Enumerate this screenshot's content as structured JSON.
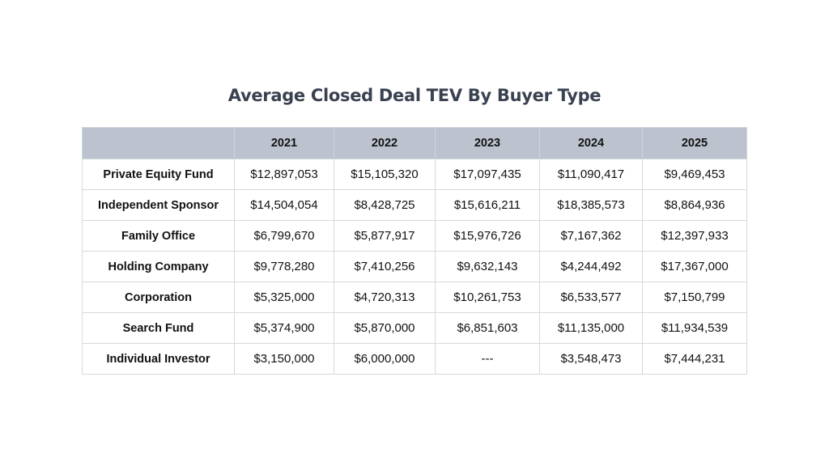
{
  "chart_data": {
    "type": "table",
    "title": "Average Closed Deal TEV By Buyer Type",
    "corner_header": "",
    "columns": [
      "2021",
      "2022",
      "2023",
      "2024",
      "2025"
    ],
    "rows": [
      {
        "label": "Private Equity Fund",
        "values": [
          "$12,897,053",
          "$15,105,320",
          "$17,097,435",
          "$11,090,417",
          "$9,469,453"
        ]
      },
      {
        "label": "Independent Sponsor",
        "values": [
          "$14,504,054",
          "$8,428,725",
          "$15,616,211",
          "$18,385,573",
          "$8,864,936"
        ]
      },
      {
        "label": "Family Office",
        "values": [
          "$6,799,670",
          "$5,877,917",
          "$15,976,726",
          "$7,167,362",
          "$12,397,933"
        ]
      },
      {
        "label": "Holding Company",
        "values": [
          "$9,778,280",
          "$7,410,256",
          "$9,632,143",
          "$4,244,492",
          "$17,367,000"
        ]
      },
      {
        "label": "Corporation",
        "values": [
          "$5,325,000",
          "$4,720,313",
          "$10,261,753",
          "$6,533,577",
          "$7,150,799"
        ]
      },
      {
        "label": "Search Fund",
        "values": [
          "$5,374,900",
          "$5,870,000",
          "$6,851,603",
          "$11,135,000",
          "$11,934,539"
        ]
      },
      {
        "label": "Individual Investor",
        "values": [
          "$3,150,000",
          "$6,000,000",
          "---",
          "$3,548,473",
          "$7,444,231"
        ]
      }
    ],
    "colors": {
      "header_background": "#bcc3cf",
      "title_text": "#3a4150",
      "cell_text": "#111111",
      "grid_lines": "#d6d9de"
    }
  }
}
